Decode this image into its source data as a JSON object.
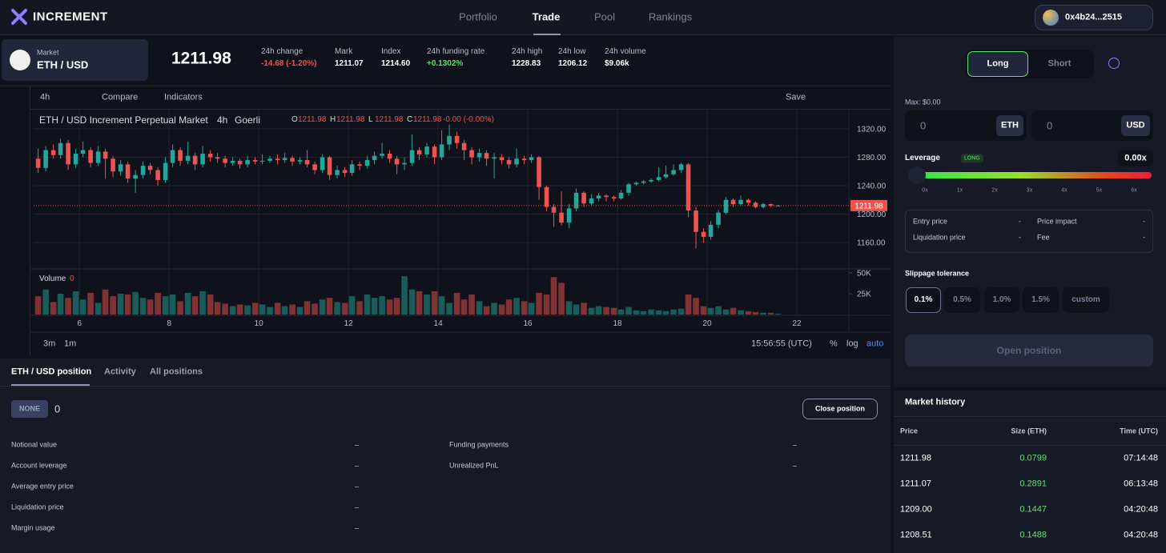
{
  "brand": "INCREMENT",
  "nav": [
    "Portfolio",
    "Trade",
    "Pool",
    "Rankings"
  ],
  "wallet": "0x4b24...2515",
  "market": {
    "label": "Market",
    "pair": "ETH / USD",
    "price": "1211.98"
  },
  "stats": [
    {
      "label": "24h change",
      "value": "-14.68 (-1.20%)"
    },
    {
      "label": "Mark",
      "value": "1211.07"
    },
    {
      "label": "Index",
      "value": "1214.60"
    },
    {
      "label": "24h funding rate",
      "value": "+0.1302%"
    },
    {
      "label": "24h high",
      "value": "1228.83"
    },
    {
      "label": "24h low",
      "value": "1206.12"
    },
    {
      "label": "24h volume",
      "value": "$9.06k"
    }
  ],
  "toolbar": {
    "interval": "4h",
    "compare": "Compare",
    "indicators": "Indicators",
    "save": "Save"
  },
  "legend": {
    "title": "ETH / USD Increment Perpetual Market",
    "interval": "4h",
    "exchange": "Goerli",
    "ohlc": [
      {
        "key": "O",
        "value": "1211.98"
      },
      {
        "key": "H",
        "value": "1211.98"
      },
      {
        "key": "L",
        "value": "1211.98"
      },
      {
        "key": "C",
        "value": "1211.98"
      }
    ],
    "change": "-0.00 (-0.00%)",
    "volume_label": "Volume",
    "volume_value": "0"
  },
  "chart_data": {
    "type": "candlestick",
    "up_color": "#26a69a",
    "down_color": "#ef5350",
    "x": [
      5.08,
      5.25,
      5.42,
      5.58,
      5.75,
      5.92,
      6.08,
      6.25,
      6.42,
      6.58,
      6.75,
      6.92,
      7.08,
      7.25,
      7.42,
      7.58,
      7.75,
      7.92,
      8.08,
      8.25,
      8.42,
      8.58,
      8.75,
      8.92,
      9.08,
      9.25,
      9.42,
      9.58,
      9.75,
      9.92,
      10.08,
      10.25,
      10.42,
      10.58,
      10.75,
      10.92,
      11.08,
      11.25,
      11.42,
      11.58,
      11.75,
      11.92,
      12.08,
      12.25,
      12.42,
      12.58,
      12.75,
      12.92,
      13.08,
      13.25,
      13.42,
      13.58,
      13.75,
      13.92,
      14.08,
      14.25,
      14.42,
      14.58,
      14.75,
      14.92,
      15.08,
      15.25,
      15.42,
      15.58,
      15.75,
      15.92,
      16.08,
      16.25,
      16.42,
      16.58,
      16.75,
      16.92,
      17.08,
      17.25,
      17.42,
      17.58,
      17.75,
      17.92,
      18.08,
      18.25,
      18.42,
      18.58,
      18.75,
      18.92,
      19.08,
      19.25,
      19.42,
      19.58,
      19.75,
      19.92,
      20.08,
      20.25,
      20.42,
      20.58,
      20.75,
      20.92,
      21.08,
      21.25,
      21.42,
      21.58
    ],
    "candles": [
      [
        1278,
        1292,
        1258,
        1265
      ],
      [
        1265,
        1296,
        1260,
        1290
      ],
      [
        1290,
        1298,
        1278,
        1283
      ],
      [
        1283,
        1306,
        1278,
        1300
      ],
      [
        1300,
        1304,
        1262,
        1270
      ],
      [
        1270,
        1292,
        1265,
        1285
      ],
      [
        1285,
        1302,
        1280,
        1290
      ],
      [
        1290,
        1294,
        1266,
        1272
      ],
      [
        1272,
        1296,
        1268,
        1288
      ],
      [
        1288,
        1292,
        1250,
        1278
      ],
      [
        1278,
        1282,
        1252,
        1260
      ],
      [
        1260,
        1276,
        1254,
        1270
      ],
      [
        1270,
        1274,
        1244,
        1250
      ],
      [
        1250,
        1262,
        1230,
        1255
      ],
      [
        1255,
        1274,
        1250,
        1268
      ],
      [
        1268,
        1272,
        1256,
        1262
      ],
      [
        1262,
        1266,
        1240,
        1248
      ],
      [
        1248,
        1280,
        1244,
        1272
      ],
      [
        1272,
        1298,
        1266,
        1290
      ],
      [
        1290,
        1294,
        1268,
        1275
      ],
      [
        1275,
        1302,
        1270,
        1282
      ],
      [
        1282,
        1286,
        1262,
        1270
      ],
      [
        1270,
        1296,
        1266,
        1285
      ],
      [
        1285,
        1290,
        1274,
        1280
      ],
      [
        1280,
        1286,
        1272,
        1278
      ],
      [
        1278,
        1282,
        1266,
        1272
      ],
      [
        1272,
        1280,
        1268,
        1275
      ],
      [
        1275,
        1278,
        1264,
        1270
      ],
      [
        1270,
        1282,
        1266,
        1276
      ],
      [
        1276,
        1280,
        1270,
        1274
      ],
      [
        1274,
        1284,
        1270,
        1275
      ],
      [
        1275,
        1282,
        1272,
        1278
      ],
      [
        1278,
        1284,
        1270,
        1276
      ],
      [
        1276,
        1286,
        1272,
        1279
      ],
      [
        1279,
        1282,
        1268,
        1274
      ],
      [
        1274,
        1280,
        1270,
        1276
      ],
      [
        1276,
        1290,
        1266,
        1270
      ],
      [
        1270,
        1274,
        1256,
        1262
      ],
      [
        1262,
        1284,
        1258,
        1280
      ],
      [
        1280,
        1282,
        1248,
        1255
      ],
      [
        1255,
        1268,
        1250,
        1262
      ],
      [
        1262,
        1266,
        1252,
        1258
      ],
      [
        1258,
        1276,
        1254,
        1270
      ],
      [
        1270,
        1274,
        1262,
        1268
      ],
      [
        1268,
        1282,
        1264,
        1276
      ],
      [
        1276,
        1288,
        1270,
        1282
      ],
      [
        1282,
        1300,
        1278,
        1285
      ],
      [
        1285,
        1290,
        1272,
        1278
      ],
      [
        1278,
        1282,
        1256,
        1270
      ],
      [
        1270,
        1280,
        1262,
        1272
      ],
      [
        1272,
        1312,
        1268,
        1290
      ],
      [
        1290,
        1294,
        1276,
        1284
      ],
      [
        1284,
        1300,
        1280,
        1295
      ],
      [
        1295,
        1298,
        1270,
        1280
      ],
      [
        1280,
        1318,
        1276,
        1298
      ],
      [
        1298,
        1326,
        1290,
        1310
      ],
      [
        1310,
        1316,
        1292,
        1300
      ],
      [
        1300,
        1304,
        1276,
        1290
      ],
      [
        1290,
        1294,
        1270,
        1280
      ],
      [
        1280,
        1292,
        1274,
        1286
      ],
      [
        1286,
        1290,
        1268,
        1278
      ],
      [
        1278,
        1286,
        1250,
        1280
      ],
      [
        1280,
        1284,
        1270,
        1276
      ],
      [
        1276,
        1280,
        1264,
        1270
      ],
      [
        1270,
        1292,
        1266,
        1278
      ],
      [
        1278,
        1282,
        1270,
        1276
      ],
      [
        1276,
        1284,
        1272,
        1280
      ],
      [
        1280,
        1282,
        1220,
        1238
      ],
      [
        1238,
        1240,
        1204,
        1210
      ],
      [
        1210,
        1214,
        1182,
        1202
      ],
      [
        1202,
        1232,
        1184,
        1188
      ],
      [
        1188,
        1214,
        1180,
        1208
      ],
      [
        1208,
        1236,
        1204,
        1230
      ],
      [
        1230,
        1232,
        1210,
        1215
      ],
      [
        1215,
        1228,
        1212,
        1222
      ],
      [
        1222,
        1230,
        1218,
        1226
      ],
      [
        1226,
        1228,
        1218,
        1224
      ],
      [
        1224,
        1226,
        1218,
        1222
      ],
      [
        1222,
        1234,
        1220,
        1230
      ],
      [
        1230,
        1244,
        1226,
        1242
      ],
      [
        1242,
        1246,
        1240,
        1244
      ],
      [
        1244,
        1248,
        1242,
        1246
      ],
      [
        1246,
        1250,
        1244,
        1248
      ],
      [
        1248,
        1266,
        1246,
        1252
      ],
      [
        1252,
        1268,
        1250,
        1256
      ],
      [
        1256,
        1270,
        1254,
        1262
      ],
      [
        1262,
        1272,
        1258,
        1270
      ],
      [
        1270,
        1272,
        1196,
        1205
      ],
      [
        1205,
        1210,
        1152,
        1175
      ],
      [
        1175,
        1180,
        1160,
        1168
      ],
      [
        1168,
        1190,
        1164,
        1185
      ],
      [
        1185,
        1206,
        1180,
        1202
      ],
      [
        1202,
        1224,
        1200,
        1220
      ],
      [
        1220,
        1222,
        1210,
        1214
      ],
      [
        1214,
        1226,
        1212,
        1220
      ],
      [
        1220,
        1222,
        1212,
        1216
      ],
      [
        1216,
        1218,
        1208,
        1210
      ],
      [
        1210,
        1216,
        1208,
        1214
      ],
      [
        1214,
        1215,
        1210,
        1212
      ],
      [
        1212,
        1213,
        1211,
        1212
      ]
    ],
    "volumes": [
      22000,
      30000,
      15000,
      25000,
      20000,
      28000,
      18000,
      26000,
      14000,
      30000,
      22000,
      25000,
      24000,
      27000,
      20000,
      18000,
      26000,
      22000,
      24000,
      16000,
      26000,
      22000,
      28000,
      24000,
      15000,
      13000,
      10000,
      12000,
      11000,
      14000,
      12000,
      9000,
      14000,
      10000,
      12000,
      9000,
      16000,
      13000,
      18000,
      20000,
      15000,
      14000,
      22000,
      16000,
      24000,
      20000,
      22000,
      18000,
      20000,
      46000,
      30000,
      28000,
      24000,
      28000,
      22000,
      14000,
      26000,
      18000,
      24000,
      16000,
      10000,
      14000,
      12000,
      18000,
      20000,
      16000,
      14000,
      26000,
      24000,
      45000,
      38000,
      16000,
      12000,
      14000,
      8000,
      10000,
      9000,
      8000,
      6000,
      9000,
      5000,
      4000,
      6000,
      5000,
      4000,
      6000,
      7000,
      24000,
      20000,
      10000,
      8000,
      10000,
      6000,
      8000,
      5000,
      4000,
      3000,
      2000,
      2000,
      1000
    ],
    "xlim": [
      4.98,
      23.16
    ],
    "xticks": [
      6,
      8,
      10,
      12,
      14,
      16,
      18,
      20,
      22
    ],
    "ylim": [
      1124,
      1347
    ],
    "yticks": [
      {
        "value": 1160,
        "label": "1160.00"
      },
      {
        "value": 1200,
        "label": "1200.00"
      },
      {
        "value": 1240,
        "label": "1240.00"
      },
      {
        "value": 1280,
        "label": "1280.00"
      },
      {
        "value": 1320,
        "label": "1320.00"
      }
    ],
    "last_price": 1211.98,
    "vlim": [
      0,
      53800
    ],
    "vticks": [
      {
        "value": 25000,
        "label": "25K"
      },
      {
        "value": 50000,
        "label": "50K"
      }
    ],
    "grid": true
  },
  "bottom_bar": {
    "ranges": [
      "3m",
      "1m"
    ],
    "clock": "15:56:55 (UTC)",
    "options": [
      "%",
      "log",
      "auto"
    ]
  },
  "position": {
    "tabs": [
      "ETH / USD position",
      "Activity",
      "All positions"
    ],
    "side": "NONE",
    "size": "0",
    "close": "Close position",
    "left": [
      {
        "label": "Notional value",
        "value": "–"
      },
      {
        "label": "Account leverage",
        "value": "–"
      },
      {
        "label": "Average entry price",
        "value": "–"
      },
      {
        "label": "Liquidation price",
        "value": "–"
      },
      {
        "label": "Margin usage",
        "value": "–"
      }
    ],
    "right": [
      {
        "label": "Funding payments",
        "value": "–"
      },
      {
        "label": "Unrealized PnL",
        "value": "–"
      }
    ]
  },
  "order": {
    "long": "Long",
    "short": "Short",
    "max": "Max: $0.00",
    "amount1": "0",
    "unit1": "ETH",
    "amount2": "0",
    "unit2": "USD",
    "leverage": "Leverage",
    "badge": "LONG",
    "leverage_value": "0.00x",
    "leverage_ticks": [
      "0x",
      "1x",
      "2x",
      "3x",
      "4x",
      "5x",
      "6x"
    ],
    "info": [
      {
        "label": "Entry price",
        "value": "-"
      },
      {
        "label": "Price impact",
        "value": "-"
      },
      {
        "label": "Liquidation price",
        "value": "-"
      },
      {
        "label": "Fee",
        "value": "-"
      }
    ],
    "slippage": "Slippage tolerance",
    "slippage_options": [
      "0.1%",
      "0.5%",
      "1.0%",
      "1.5%",
      "custom"
    ],
    "submit": "Open position"
  },
  "history": {
    "title": "Market history",
    "columns": [
      "Price",
      "Size (ETH)",
      "Time (UTC)"
    ],
    "rows": [
      [
        "1211.98",
        "0.0799",
        "07:14:48"
      ],
      [
        "1211.07",
        "0.2891",
        "06:13:48"
      ],
      [
        "1209.00",
        "0.1447",
        "04:20:48"
      ],
      [
        "1208.51",
        "0.1488",
        "04:20:48"
      ]
    ]
  }
}
